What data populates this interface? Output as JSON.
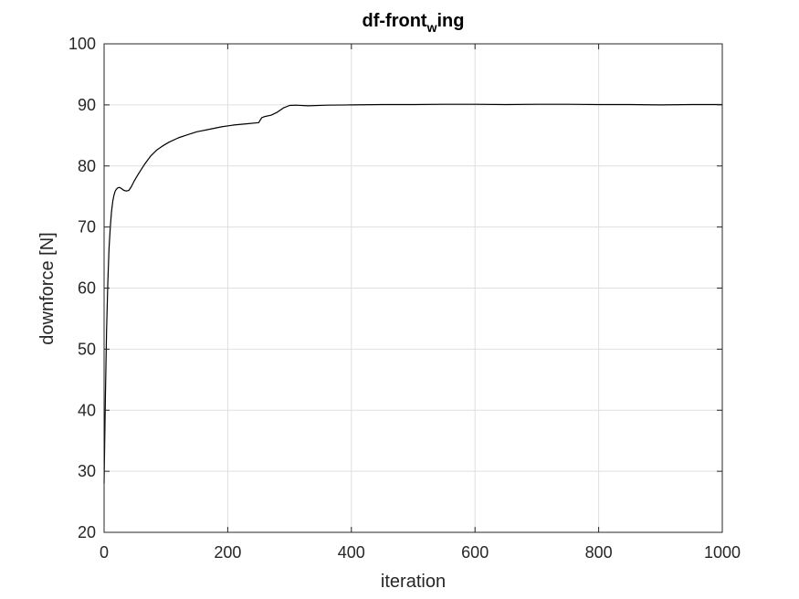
{
  "chart_data": {
    "type": "line",
    "title": {
      "main": "df-front",
      "subscript": "w",
      "rest": "ing"
    },
    "xlabel": "iteration",
    "ylabel": "downforce [N]",
    "xlim": [
      0,
      1000
    ],
    "ylim": [
      20,
      100
    ],
    "xticks": [
      0,
      200,
      400,
      600,
      800,
      1000
    ],
    "yticks": [
      20,
      30,
      40,
      50,
      60,
      70,
      80,
      90,
      100
    ],
    "grid": true,
    "line_color": "#000000",
    "series": [
      {
        "x": [
          0,
          2,
          4,
          6,
          8,
          10,
          12,
          14,
          16,
          18,
          20,
          22,
          25,
          28,
          32,
          36,
          40,
          44,
          48,
          55,
          65,
          75,
          85,
          95,
          105,
          120,
          135,
          150,
          170,
          190,
          210,
          230,
          250,
          255,
          260,
          270,
          280,
          290,
          300,
          310,
          330,
          360,
          400,
          450,
          500,
          550,
          600,
          650,
          700,
          750,
          800,
          850,
          900,
          950,
          1000
        ],
        "y": [
          28,
          42,
          53,
          61,
          66.5,
          70,
          72.5,
          74.2,
          75.2,
          75.9,
          76.2,
          76.4,
          76.5,
          76.3,
          76.0,
          75.9,
          76.0,
          76.6,
          77.4,
          78.6,
          80.2,
          81.6,
          82.6,
          83.3,
          83.9,
          84.6,
          85.1,
          85.6,
          86.0,
          86.4,
          86.7,
          86.9,
          87.1,
          87.9,
          88.1,
          88.3,
          88.8,
          89.5,
          89.9,
          89.95,
          89.85,
          89.95,
          90.0,
          90.05,
          90.05,
          90.1,
          90.1,
          90.05,
          90.1,
          90.1,
          90.05,
          90.05,
          90.0,
          90.05,
          90.05
        ]
      }
    ]
  }
}
